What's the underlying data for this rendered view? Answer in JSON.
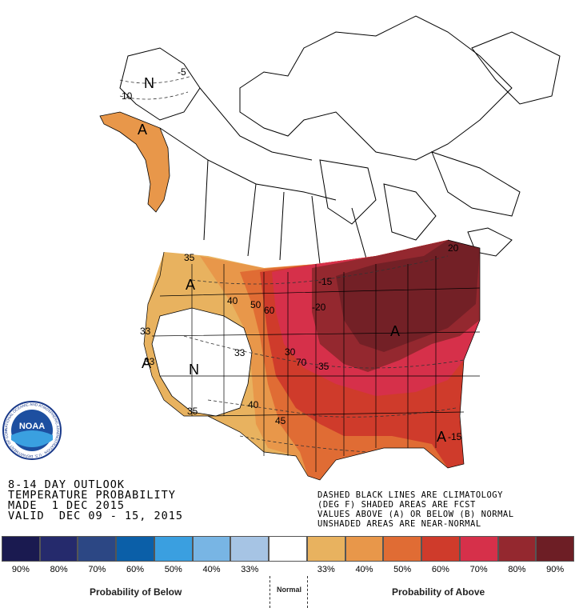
{
  "header": {
    "line1": "8-14 DAY OUTLOOK",
    "line2": "TEMPERATURE PROBABILITY",
    "line3": "MADE  1 DEC 2015",
    "line4": "VALID  DEC 09 - 15, 2015"
  },
  "notes": {
    "line1": "DASHED BLACK LINES ARE CLIMATOLOGY",
    "line2": "(DEG F) SHADED AREAS ARE FCST",
    "line3": "VALUES ABOVE (A) OR BELOW (B) NORMAL",
    "line4": "UNSHADED AREAS ARE NEAR-NORMAL"
  },
  "logo": {
    "text": "NOAA",
    "ring_text": "NATIONAL OCEANIC AND ATMOSPHERIC ADMINISTRATION · U.S. DEPARTMENT OF COMMERCE"
  },
  "map": {
    "region_labels": {
      "a1": "A",
      "a2": "A",
      "a3": "A",
      "a4": "A",
      "a5": "A",
      "n1": "N",
      "n2": "N"
    },
    "contour_labels": {
      "c1": "-5",
      "c2": "10",
      "c3": "35",
      "c4": "40",
      "c5": "50",
      "c6": "60",
      "c7": "33",
      "c8": "33",
      "c9": "33",
      "c10": "-15",
      "c11": "-20",
      "c12": "30",
      "c13": "-35",
      "c14": "70",
      "c15": "35",
      "c16": "40",
      "c17": "45",
      "c18": "20",
      "c19": "-15"
    },
    "colors": {
      "above_33": "#e8b25f",
      "above_40": "#e8974a",
      "above_50": "#e06c34",
      "above_60": "#cf3b2b",
      "above_70": "#d6304a",
      "above_80": "#94282f",
      "above_90": "#6d1e25",
      "below_33": "#a6c4e4"
    }
  },
  "legend": {
    "swatches": [
      "#1a1a50",
      "#252a6c",
      "#2c4784",
      "#0b5fa8",
      "#3a9fe0",
      "#78b5e4",
      "#a6c4e4",
      "#ffffff",
      "#e8b25f",
      "#e8974a",
      "#e06c34",
      "#cf3b2b",
      "#d6304a",
      "#94282f",
      "#6d1e25"
    ],
    "labels": [
      "90%",
      "80%",
      "70%",
      "60%",
      "50%",
      "40%",
      "33%",
      "33%",
      "40%",
      "50%",
      "60%",
      "70%",
      "80%",
      "90%"
    ],
    "below_title": "Probability of Below",
    "normal_title": "Normal",
    "above_title": "Probability of Above"
  }
}
